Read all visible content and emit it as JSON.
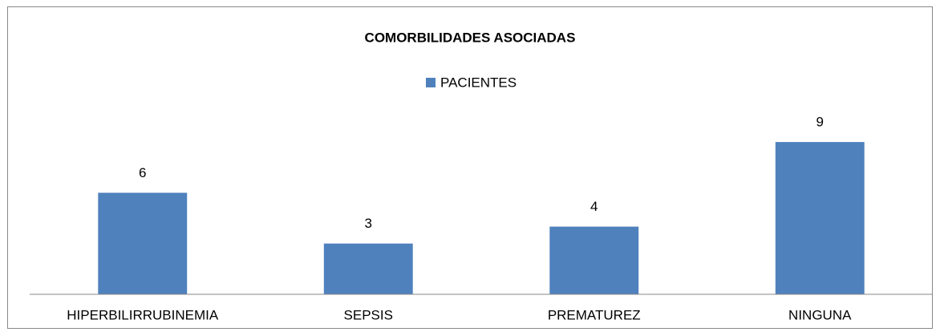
{
  "chart_data": {
    "type": "bar",
    "title": "COMORBILIDADES ASOCIADAS",
    "categories": [
      "HIPERBILIRRUBINEMIA",
      "SEPSIS",
      "PREMATUREZ",
      "NINGUNA"
    ],
    "series": [
      {
        "name": "PACIENTES",
        "color": "#4f81bd",
        "values": [
          6,
          3,
          4,
          9
        ]
      }
    ],
    "ylim": [
      0,
      10
    ],
    "legend": "top"
  }
}
